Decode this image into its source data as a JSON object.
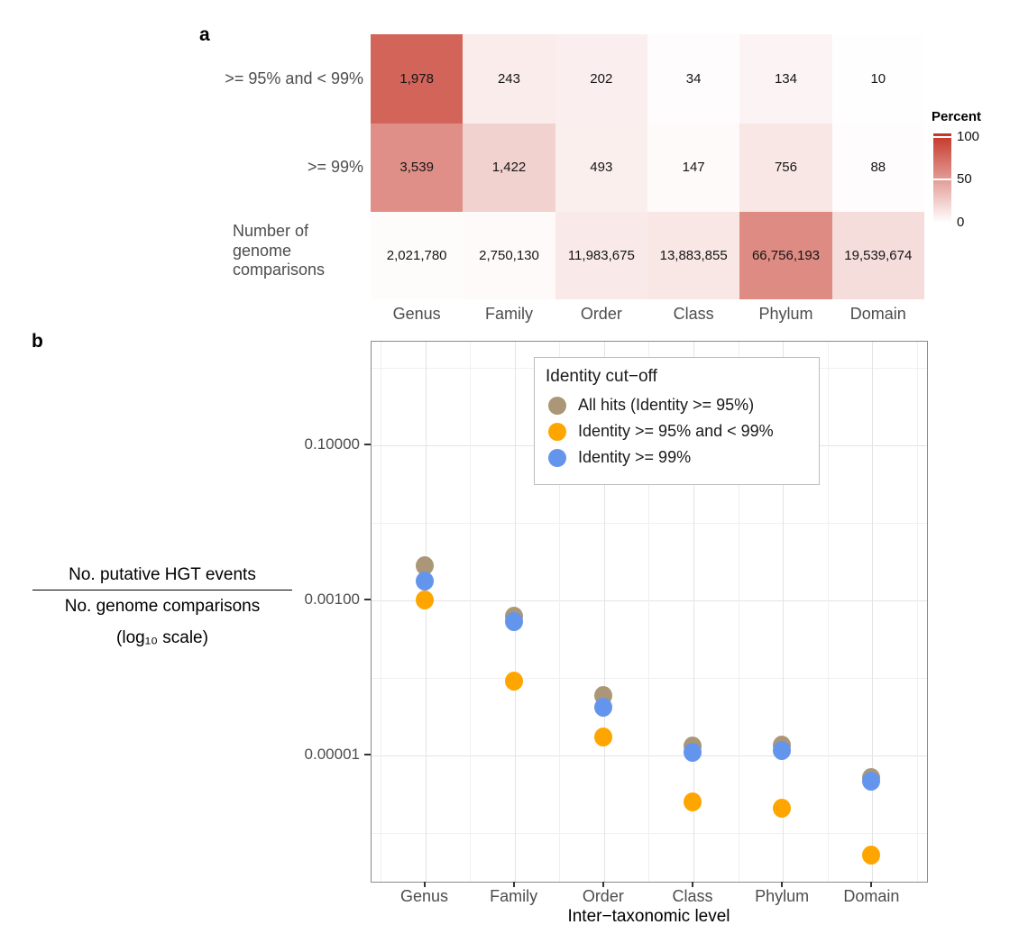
{
  "figure": {
    "panel_a_label": "a",
    "panel_b_label": "b"
  },
  "chart_data": [
    {
      "type": "heatmap",
      "panel": "a",
      "columns": [
        "Genus",
        "Family",
        "Order",
        "Class",
        "Phylum",
        "Domain"
      ],
      "row_labels": [
        ">= 95% and < 99%",
        ">= 99%",
        "Number of\ngenome\ncomparisons"
      ],
      "cell_labels": [
        [
          "1,978",
          "243",
          "202",
          "34",
          "134",
          "10"
        ],
        [
          "3,539",
          "1,422",
          "493",
          "147",
          "756",
          "88"
        ],
        [
          "2,021,780",
          "2,750,130",
          "11,983,675",
          "13,883,855",
          "66,756,193",
          "19,539,674"
        ]
      ],
      "cell_values": [
        [
          1978,
          243,
          202,
          34,
          134,
          10
        ],
        [
          3539,
          1422,
          493,
          147,
          756,
          88
        ],
        [
          2021780,
          2750130,
          11983675,
          13883855,
          66756193,
          19539674
        ]
      ],
      "cell_percent": [
        [
          76.0,
          9.3,
          7.8,
          1.3,
          5.2,
          0.4
        ],
        [
          54.9,
          22.1,
          7.6,
          2.3,
          11.7,
          1.4
        ],
        [
          1.7,
          2.4,
          10.2,
          11.9,
          57.1,
          16.7
        ]
      ],
      "colorbar": {
        "title": "Percent",
        "tick_labels": [
          "100",
          "50",
          "0"
        ],
        "high_color": "#c43325",
        "low_color": "#ffffff"
      }
    },
    {
      "type": "scatter",
      "panel": "b",
      "categories": [
        "Genus",
        "Family",
        "Order",
        "Class",
        "Phylum",
        "Domain"
      ],
      "xlabel": "Inter−taxonomic level",
      "ylabel": {
        "numerator": "No. putative HGT events",
        "denominator": "No. genome comparisons",
        "note": "(log₁₀ scale)"
      },
      "y_scale": "log10",
      "grid": true,
      "legend_position": "inside-top",
      "y_ticks": [
        {
          "label": "0.10000",
          "value": 0.1
        },
        {
          "label": "0.00100",
          "value": 0.001
        },
        {
          "label": "0.00001",
          "value": 1e-05
        }
      ],
      "legend": {
        "title": "Identity cut−off"
      },
      "series": [
        {
          "name": "All hits (Identity >= 95%)",
          "color": "#ab9778",
          "values": [
            0.00272877,
            0.00060543,
            5.8e-05,
            1.304e-05,
            1.333e-05,
            5.02e-06
          ]
        },
        {
          "name": "Identity >= 95% and < 99%",
          "color": "#ffa500",
          "values": [
            0.00097834,
            8.836e-05,
            1.686e-05,
            2.45e-06,
            2.01e-06,
            5.1e-07
          ]
        },
        {
          "name": "Identity >= 99%",
          "color": "#6495ed",
          "values": [
            0.00175044,
            0.00051707,
            4.114e-05,
            1.059e-05,
            1.132e-05,
            4.5e-06
          ]
        }
      ]
    }
  ]
}
